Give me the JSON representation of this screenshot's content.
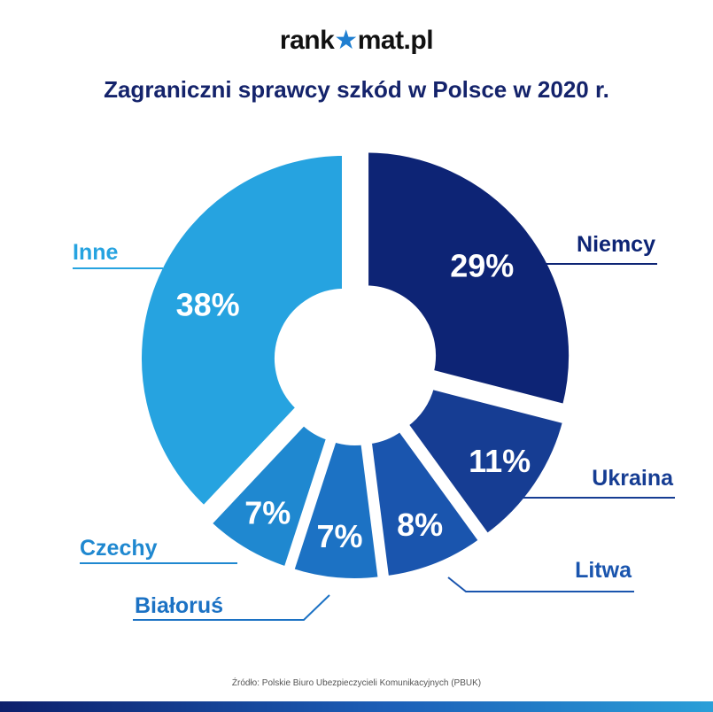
{
  "brand": {
    "name_before": "rank",
    "name_after": "mat.pl",
    "star_glyph": "★"
  },
  "chart_data": {
    "type": "pie",
    "variant": "exploded-donut",
    "title": "Zagraniczni sprawcy szkód w Polsce w 2020 r.",
    "unit": "%",
    "slices": [
      {
        "label": "Niemcy",
        "value": 29,
        "display": "29%",
        "color": "#0d2475"
      },
      {
        "label": "Ukraina",
        "value": 11,
        "display": "11%",
        "color": "#163d93"
      },
      {
        "label": "Litwa",
        "value": 8,
        "display": "8%",
        "color": "#1a55ae"
      },
      {
        "label": "Białoruś",
        "value": 7,
        "display": "7%",
        "color": "#1c72c4"
      },
      {
        "label": "Czechy",
        "value": 7,
        "display": "7%",
        "color": "#1f88d0"
      },
      {
        "label": "Inne",
        "value": 38,
        "display": "38%",
        "color": "#26a3e0"
      }
    ],
    "source": "Źródło: Polskie Biuro Ubezpieczycieli Komunikacyjnych (PBUK)"
  }
}
